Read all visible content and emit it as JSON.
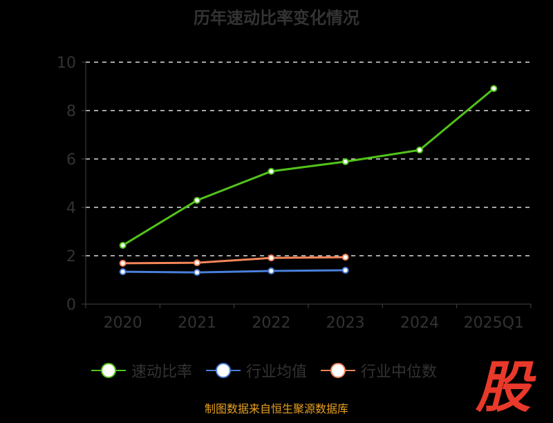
{
  "chart_data": {
    "type": "line",
    "title": "历年速动比率变化情况",
    "categories": [
      "2020",
      "2021",
      "2022",
      "2023",
      "2024",
      "2025Q1"
    ],
    "ylim": [
      0,
      10
    ],
    "yticks": [
      "0",
      "2",
      "4",
      "6",
      "8",
      "10"
    ],
    "grid": true,
    "legend_position": "bottom",
    "series": [
      {
        "name": "速动比率",
        "color": "#52c41a",
        "values": [
          2.43,
          4.29,
          5.49,
          5.89,
          6.37,
          8.91
        ]
      },
      {
        "name": "行业均值",
        "color": "#4a7fdc",
        "values": [
          1.34,
          1.31,
          1.37,
          1.4,
          null,
          null
        ]
      },
      {
        "name": "行业中位数",
        "color": "#f5865a",
        "values": [
          1.69,
          1.71,
          1.91,
          1.94,
          null,
          null
        ]
      }
    ]
  },
  "source": "制图数据来自恒生聚源数据库",
  "logo_text": "股"
}
